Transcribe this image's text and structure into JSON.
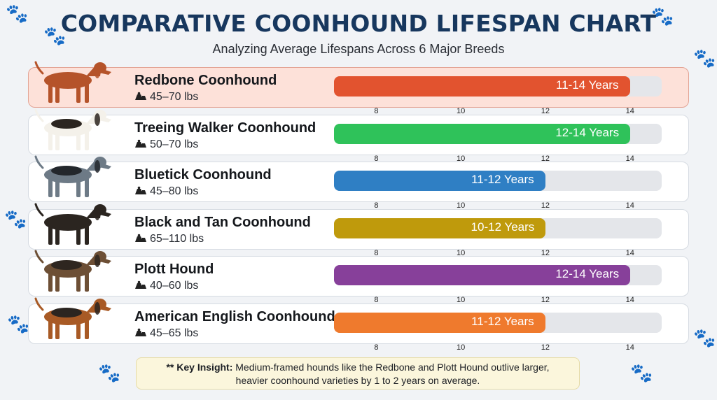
{
  "title": "COMPARATIVE COONHOUND LIFESPAN CHART",
  "subtitle": "Analyzing Average Lifespans Across 6 Major Breeds",
  "icons": {
    "weight": "weight-icon",
    "background": "paw-print-icon"
  },
  "chart_data": {
    "type": "bar",
    "orientation": "horizontal-range",
    "x_axis": {
      "ticks": [
        8,
        10,
        12,
        14
      ],
      "range": [
        7,
        14.75
      ]
    },
    "highlighted_category": "Redbone Coonhound",
    "categories": [
      "Redbone Coonhound",
      "Treeing Walker Coonhound",
      "Bluetick Coonhound",
      "Black and Tan Coonhound",
      "Plott Hound",
      "American English Coonhound"
    ],
    "series": [
      {
        "values": [
          {
            "breed": "Redbone Coonhound",
            "weight": "45–70 lbs",
            "min": 11,
            "max": 14,
            "label": "11-14 Years",
            "color": "#e2532f"
          },
          {
            "breed": "Treeing Walker Coonhound",
            "weight": "50–70 lbs",
            "min": 12,
            "max": 14,
            "label": "12-14 Years",
            "color": "#2fc25a"
          },
          {
            "breed": "Bluetick Coonhound",
            "weight": "45–80 lbs",
            "min": 11,
            "max": 12,
            "label": "11-12 Years",
            "color": "#2f7fc4"
          },
          {
            "breed": "Black and Tan Coonhound",
            "weight": "65–110 lbs",
            "min": 10,
            "max": 12,
            "label": "10-12 Years",
            "color": "#bf9a0c"
          },
          {
            "breed": "Plott Hound",
            "weight": "40–60 lbs",
            "min": 12,
            "max": 14,
            "label": "12-14 Years",
            "color": "#87409a"
          },
          {
            "breed": "American English Coonhound",
            "weight": "45–65 lbs",
            "min": 11,
            "max": 12,
            "label": "11-12 Years",
            "color": "#ef7a2d"
          }
        ]
      }
    ]
  },
  "insight": {
    "prefix": "** Key Insight:",
    "line1": " Medium-framed hounds like the Redbone and Plott Hound outlive larger,",
    "line2": "heavier coonhound varieties by 1 to 2 years on average."
  }
}
